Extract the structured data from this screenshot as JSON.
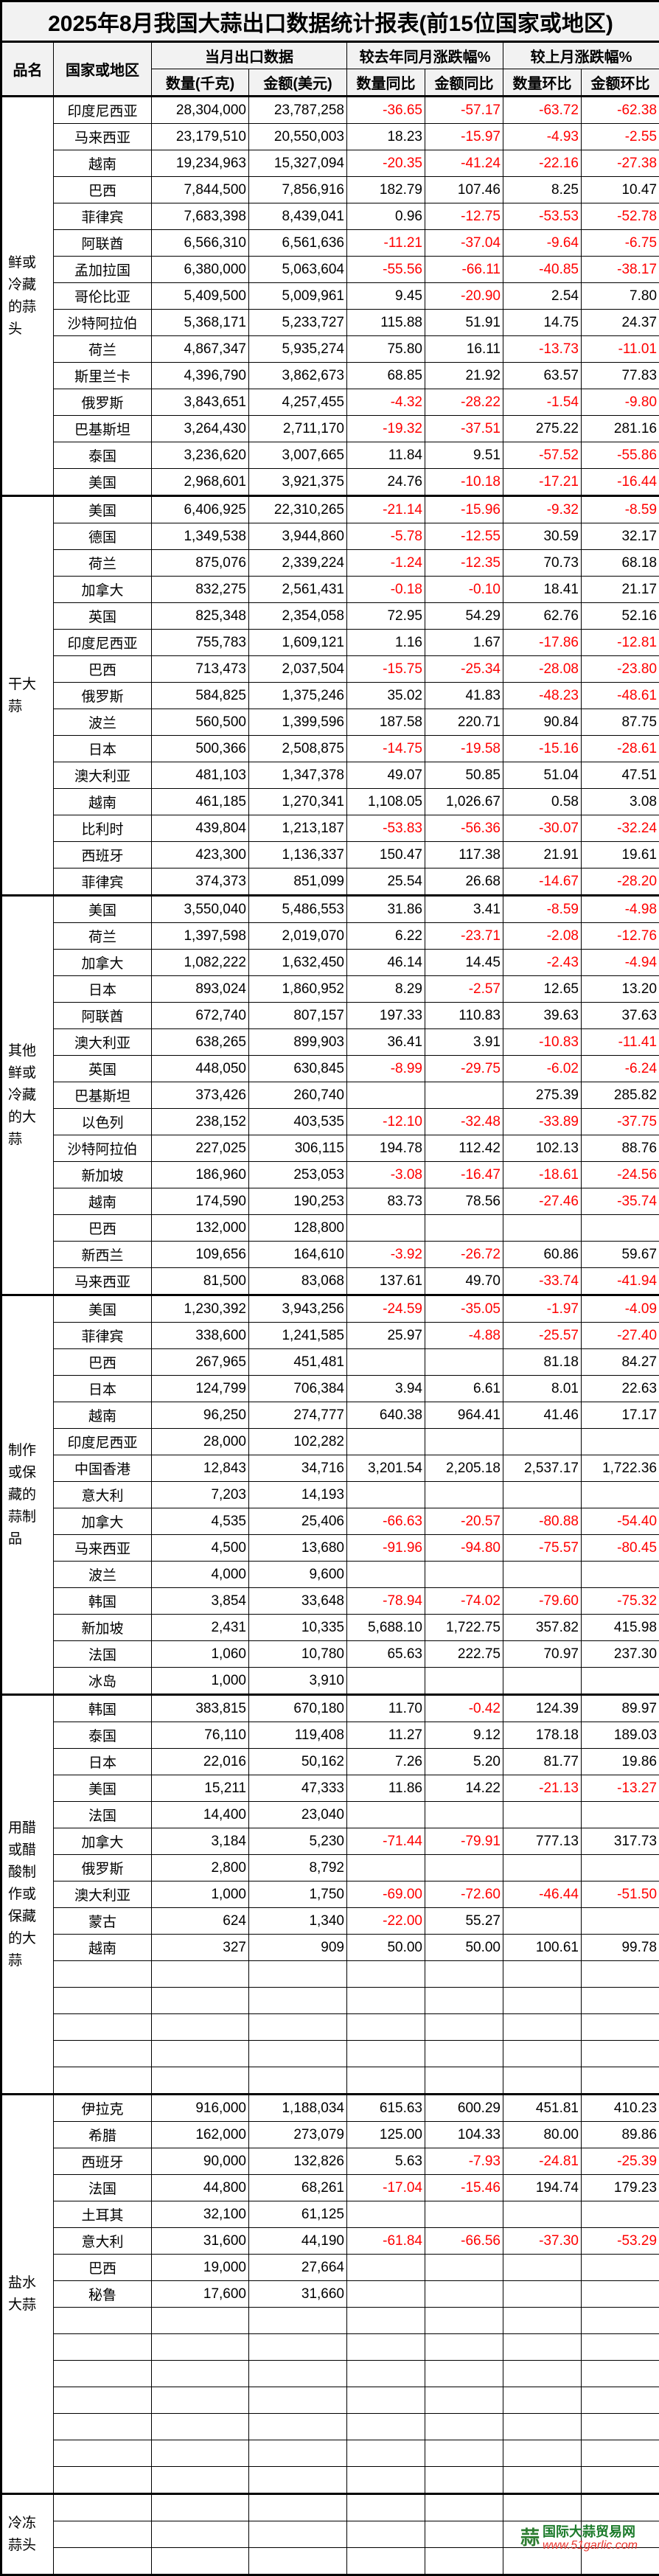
{
  "title": "2025年8月我国大蒜出口数据统计报表(前15位国家或地区)",
  "header": {
    "category": "品名",
    "country": "国家或地区",
    "group_current": "当月出口数据",
    "group_yoy": "较去年同月涨跌幅%",
    "group_mom": "较上月涨跌幅%",
    "qty": "数量(千克)",
    "amount": "金额(美元)",
    "qty_yoy": "数量同比",
    "amount_yoy": "金额同比",
    "qty_mom": "数量环比",
    "amount_mom": "金额环比"
  },
  "colors": {
    "negative": "#ff0000",
    "header_bg": "#f2f2f2"
  },
  "sections": [
    {
      "label": "鲜或冷藏的蒜头",
      "rows": [
        [
          "印度尼西亚",
          "28,304,000",
          "23,787,258",
          "-36.65",
          "-57.17",
          "-63.72",
          "-62.38"
        ],
        [
          "马来西亚",
          "23,179,510",
          "20,550,003",
          "18.23",
          "-15.97",
          "-4.93",
          "-2.55"
        ],
        [
          "越南",
          "19,234,963",
          "15,327,094",
          "-20.35",
          "-41.24",
          "-22.16",
          "-27.38"
        ],
        [
          "巴西",
          "7,844,500",
          "7,856,916",
          "182.79",
          "107.46",
          "8.25",
          "10.47"
        ],
        [
          "菲律宾",
          "7,683,398",
          "8,439,041",
          "0.96",
          "-12.75",
          "-53.53",
          "-52.78"
        ],
        [
          "阿联酋",
          "6,566,310",
          "6,561,636",
          "-11.21",
          "-37.04",
          "-9.64",
          "-6.75"
        ],
        [
          "孟加拉国",
          "6,380,000",
          "5,063,604",
          "-55.56",
          "-66.11",
          "-40.85",
          "-38.17"
        ],
        [
          "哥伦比亚",
          "5,409,500",
          "5,009,961",
          "9.45",
          "-20.90",
          "2.54",
          "7.80"
        ],
        [
          "沙特阿拉伯",
          "5,368,171",
          "5,233,727",
          "115.88",
          "51.91",
          "14.75",
          "24.37"
        ],
        [
          "荷兰",
          "4,867,347",
          "5,935,274",
          "75.80",
          "16.11",
          "-13.73",
          "-11.01"
        ],
        [
          "斯里兰卡",
          "4,396,790",
          "3,862,673",
          "68.85",
          "21.92",
          "63.57",
          "77.83"
        ],
        [
          "俄罗斯",
          "3,843,651",
          "4,257,455",
          "-4.32",
          "-28.22",
          "-1.54",
          "-9.80"
        ],
        [
          "巴基斯坦",
          "3,264,430",
          "2,711,170",
          "-19.32",
          "-37.51",
          "275.22",
          "281.16"
        ],
        [
          "泰国",
          "3,236,620",
          "3,007,665",
          "11.84",
          "9.51",
          "-57.52",
          "-55.86"
        ],
        [
          "美国",
          "2,968,601",
          "3,921,375",
          "24.76",
          "-10.18",
          "-17.21",
          "-16.44"
        ]
      ]
    },
    {
      "label": "干大蒜",
      "rows": [
        [
          "美国",
          "6,406,925",
          "22,310,265",
          "-21.14",
          "-15.96",
          "-9.32",
          "-8.59"
        ],
        [
          "德国",
          "1,349,538",
          "3,944,860",
          "-5.78",
          "-12.55",
          "30.59",
          "32.17"
        ],
        [
          "荷兰",
          "875,076",
          "2,339,224",
          "-1.24",
          "-12.35",
          "70.73",
          "68.18"
        ],
        [
          "加拿大",
          "832,275",
          "2,561,431",
          "-0.18",
          "-0.10",
          "18.41",
          "21.17"
        ],
        [
          "英国",
          "825,348",
          "2,354,058",
          "72.95",
          "54.29",
          "62.76",
          "52.16"
        ],
        [
          "印度尼西亚",
          "755,783",
          "1,609,121",
          "1.16",
          "1.67",
          "-17.86",
          "-12.81"
        ],
        [
          "巴西",
          "713,473",
          "2,037,504",
          "-15.75",
          "-25.34",
          "-28.08",
          "-23.80"
        ],
        [
          "俄罗斯",
          "584,825",
          "1,375,246",
          "35.02",
          "41.83",
          "-48.23",
          "-48.61"
        ],
        [
          "波兰",
          "560,500",
          "1,399,596",
          "187.58",
          "220.71",
          "90.84",
          "87.75"
        ],
        [
          "日本",
          "500,366",
          "2,508,875",
          "-14.75",
          "-19.58",
          "-15.16",
          "-28.61"
        ],
        [
          "澳大利亚",
          "481,103",
          "1,347,378",
          "49.07",
          "50.85",
          "51.04",
          "47.51"
        ],
        [
          "越南",
          "461,185",
          "1,270,341",
          "1,108.05",
          "1,026.67",
          "0.58",
          "3.08"
        ],
        [
          "比利时",
          "439,804",
          "1,213,187",
          "-53.83",
          "-56.36",
          "-30.07",
          "-32.24"
        ],
        [
          "西班牙",
          "423,300",
          "1,136,337",
          "150.47",
          "117.38",
          "21.91",
          "19.61"
        ],
        [
          "菲律宾",
          "374,373",
          "851,099",
          "25.54",
          "26.68",
          "-14.67",
          "-28.20"
        ]
      ]
    },
    {
      "label": "其他鲜或冷藏的大蒜",
      "rows": [
        [
          "美国",
          "3,550,040",
          "5,486,553",
          "31.86",
          "3.41",
          "-8.59",
          "-4.98"
        ],
        [
          "荷兰",
          "1,397,598",
          "2,019,070",
          "6.22",
          "-23.71",
          "-2.08",
          "-12.76"
        ],
        [
          "加拿大",
          "1,082,222",
          "1,632,450",
          "46.14",
          "14.45",
          "-2.43",
          "-4.94"
        ],
        [
          "日本",
          "893,024",
          "1,860,952",
          "8.29",
          "-2.57",
          "12.65",
          "13.20"
        ],
        [
          "阿联酋",
          "672,740",
          "807,157",
          "197.33",
          "110.83",
          "39.63",
          "37.63"
        ],
        [
          "澳大利亚",
          "638,265",
          "899,903",
          "36.41",
          "3.91",
          "-10.83",
          "-11.41"
        ],
        [
          "英国",
          "448,050",
          "630,845",
          "-8.99",
          "-29.75",
          "-6.02",
          "-6.24"
        ],
        [
          "巴基斯坦",
          "373,426",
          "260,740",
          "",
          "",
          "275.39",
          "285.82"
        ],
        [
          "以色列",
          "238,152",
          "403,535",
          "-12.10",
          "-32.48",
          "-33.89",
          "-37.75"
        ],
        [
          "沙特阿拉伯",
          "227,025",
          "306,115",
          "194.78",
          "112.42",
          "102.13",
          "88.76"
        ],
        [
          "新加坡",
          "186,960",
          "253,053",
          "-3.08",
          "-16.47",
          "-18.61",
          "-24.56"
        ],
        [
          "越南",
          "174,590",
          "190,253",
          "83.73",
          "78.56",
          "-27.46",
          "-35.74"
        ],
        [
          "巴西",
          "132,000",
          "128,800",
          "",
          "",
          "",
          ""
        ],
        [
          "新西兰",
          "109,656",
          "164,610",
          "-3.92",
          "-26.72",
          "60.86",
          "59.67"
        ],
        [
          "马来西亚",
          "81,500",
          "83,068",
          "137.61",
          "49.70",
          "-33.74",
          "-41.94"
        ]
      ]
    },
    {
      "label": "制作或保藏的蒜制品",
      "rows": [
        [
          "美国",
          "1,230,392",
          "3,943,256",
          "-24.59",
          "-35.05",
          "-1.97",
          "-4.09"
        ],
        [
          "菲律宾",
          "338,600",
          "1,241,585",
          "25.97",
          "-4.88",
          "-25.57",
          "-27.40"
        ],
        [
          "巴西",
          "267,965",
          "451,481",
          "",
          "",
          "81.18",
          "84.27"
        ],
        [
          "日本",
          "124,799",
          "706,384",
          "3.94",
          "6.61",
          "8.01",
          "22.63"
        ],
        [
          "越南",
          "96,250",
          "274,777",
          "640.38",
          "964.41",
          "41.46",
          "17.17"
        ],
        [
          "印度尼西亚",
          "28,000",
          "102,282",
          "",
          "",
          "",
          ""
        ],
        [
          "中国香港",
          "12,843",
          "34,716",
          "3,201.54",
          "2,205.18",
          "2,537.17",
          "1,722.36"
        ],
        [
          "意大利",
          "7,203",
          "14,193",
          "",
          "",
          "",
          ""
        ],
        [
          "加拿大",
          "4,535",
          "25,406",
          "-66.63",
          "-20.57",
          "-80.88",
          "-54.40"
        ],
        [
          "马来西亚",
          "4,500",
          "13,680",
          "-91.96",
          "-94.80",
          "-75.57",
          "-80.45"
        ],
        [
          "波兰",
          "4,000",
          "9,600",
          "",
          "",
          "",
          ""
        ],
        [
          "韩国",
          "3,854",
          "33,648",
          "-78.94",
          "-74.02",
          "-79.60",
          "-75.32"
        ],
        [
          "新加坡",
          "2,431",
          "10,335",
          "5,688.10",
          "1,722.75",
          "357.82",
          "415.98"
        ],
        [
          "法国",
          "1,060",
          "10,780",
          "65.63",
          "222.75",
          "70.97",
          "237.30"
        ],
        [
          "冰岛",
          "1,000",
          "3,910",
          "",
          "",
          "",
          ""
        ]
      ]
    },
    {
      "label": "用醋或醋酸制作或保藏的大蒜",
      "rows": [
        [
          "韩国",
          "383,815",
          "670,180",
          "11.70",
          "-0.42",
          "124.39",
          "89.97"
        ],
        [
          "泰国",
          "76,110",
          "119,408",
          "11.27",
          "9.12",
          "178.18",
          "189.03"
        ],
        [
          "日本",
          "22,016",
          "50,162",
          "7.26",
          "5.20",
          "81.77",
          "19.86"
        ],
        [
          "美国",
          "15,211",
          "47,333",
          "11.86",
          "14.22",
          "-21.13",
          "-13.27"
        ],
        [
          "法国",
          "14,400",
          "23,040",
          "",
          "",
          "",
          ""
        ],
        [
          "加拿大",
          "3,184",
          "5,230",
          "-71.44",
          "-79.91",
          "777.13",
          "317.73"
        ],
        [
          "俄罗斯",
          "2,800",
          "8,792",
          "",
          "",
          "",
          ""
        ],
        [
          "澳大利亚",
          "1,000",
          "1,750",
          "-69.00",
          "-72.60",
          "-46.44",
          "-51.50"
        ],
        [
          "蒙古",
          "624",
          "1,340",
          "-22.00",
          "55.27",
          "",
          ""
        ],
        [
          "越南",
          "327",
          "909",
          "50.00",
          "50.00",
          "100.61",
          "99.78"
        ],
        [
          "",
          "",
          "",
          "",
          "",
          "",
          ""
        ],
        [
          "",
          "",
          "",
          "",
          "",
          "",
          ""
        ],
        [
          "",
          "",
          "",
          "",
          "",
          "",
          ""
        ],
        [
          "",
          "",
          "",
          "",
          "",
          "",
          ""
        ],
        [
          "",
          "",
          "",
          "",
          "",
          "",
          ""
        ]
      ]
    },
    {
      "label": "盐水大蒜",
      "rows": [
        [
          "伊拉克",
          "916,000",
          "1,188,034",
          "615.63",
          "600.29",
          "451.81",
          "410.23"
        ],
        [
          "希腊",
          "162,000",
          "273,079",
          "125.00",
          "104.33",
          "80.00",
          "89.86"
        ],
        [
          "西班牙",
          "90,000",
          "132,826",
          "5.63",
          "-7.93",
          "-24.81",
          "-25.39"
        ],
        [
          "法国",
          "44,800",
          "68,261",
          "-17.04",
          "-15.46",
          "194.74",
          "179.23"
        ],
        [
          "土耳其",
          "32,100",
          "61,125",
          "",
          "",
          "",
          ""
        ],
        [
          "意大利",
          "31,600",
          "44,190",
          "-61.84",
          "-66.56",
          "-37.30",
          "-53.29"
        ],
        [
          "巴西",
          "19,000",
          "27,664",
          "",
          "",
          "",
          ""
        ],
        [
          "秘鲁",
          "17,600",
          "31,660",
          "",
          "",
          "",
          ""
        ],
        [
          "",
          "",
          "",
          "",
          "",
          "",
          ""
        ],
        [
          "",
          "",
          "",
          "",
          "",
          "",
          ""
        ],
        [
          "",
          "",
          "",
          "",
          "",
          "",
          ""
        ],
        [
          "",
          "",
          "",
          "",
          "",
          "",
          ""
        ],
        [
          "",
          "",
          "",
          "",
          "",
          "",
          ""
        ],
        [
          "",
          "",
          "",
          "",
          "",
          "",
          ""
        ],
        [
          "",
          "",
          "",
          "",
          "",
          "",
          ""
        ]
      ]
    },
    {
      "label": "冷冻蒜头",
      "rows": [
        [
          "",
          "",
          "",
          "",
          "",
          "",
          ""
        ],
        [
          "",
          "",
          "",
          "",
          "",
          "",
          ""
        ],
        [
          "",
          "",
          "",
          "",
          "",
          "",
          ""
        ]
      ]
    }
  ],
  "logo": {
    "name": "国际大蒜贸易网",
    "url": "www.51garlic.com",
    "icon": "garlic-logo-icon"
  }
}
